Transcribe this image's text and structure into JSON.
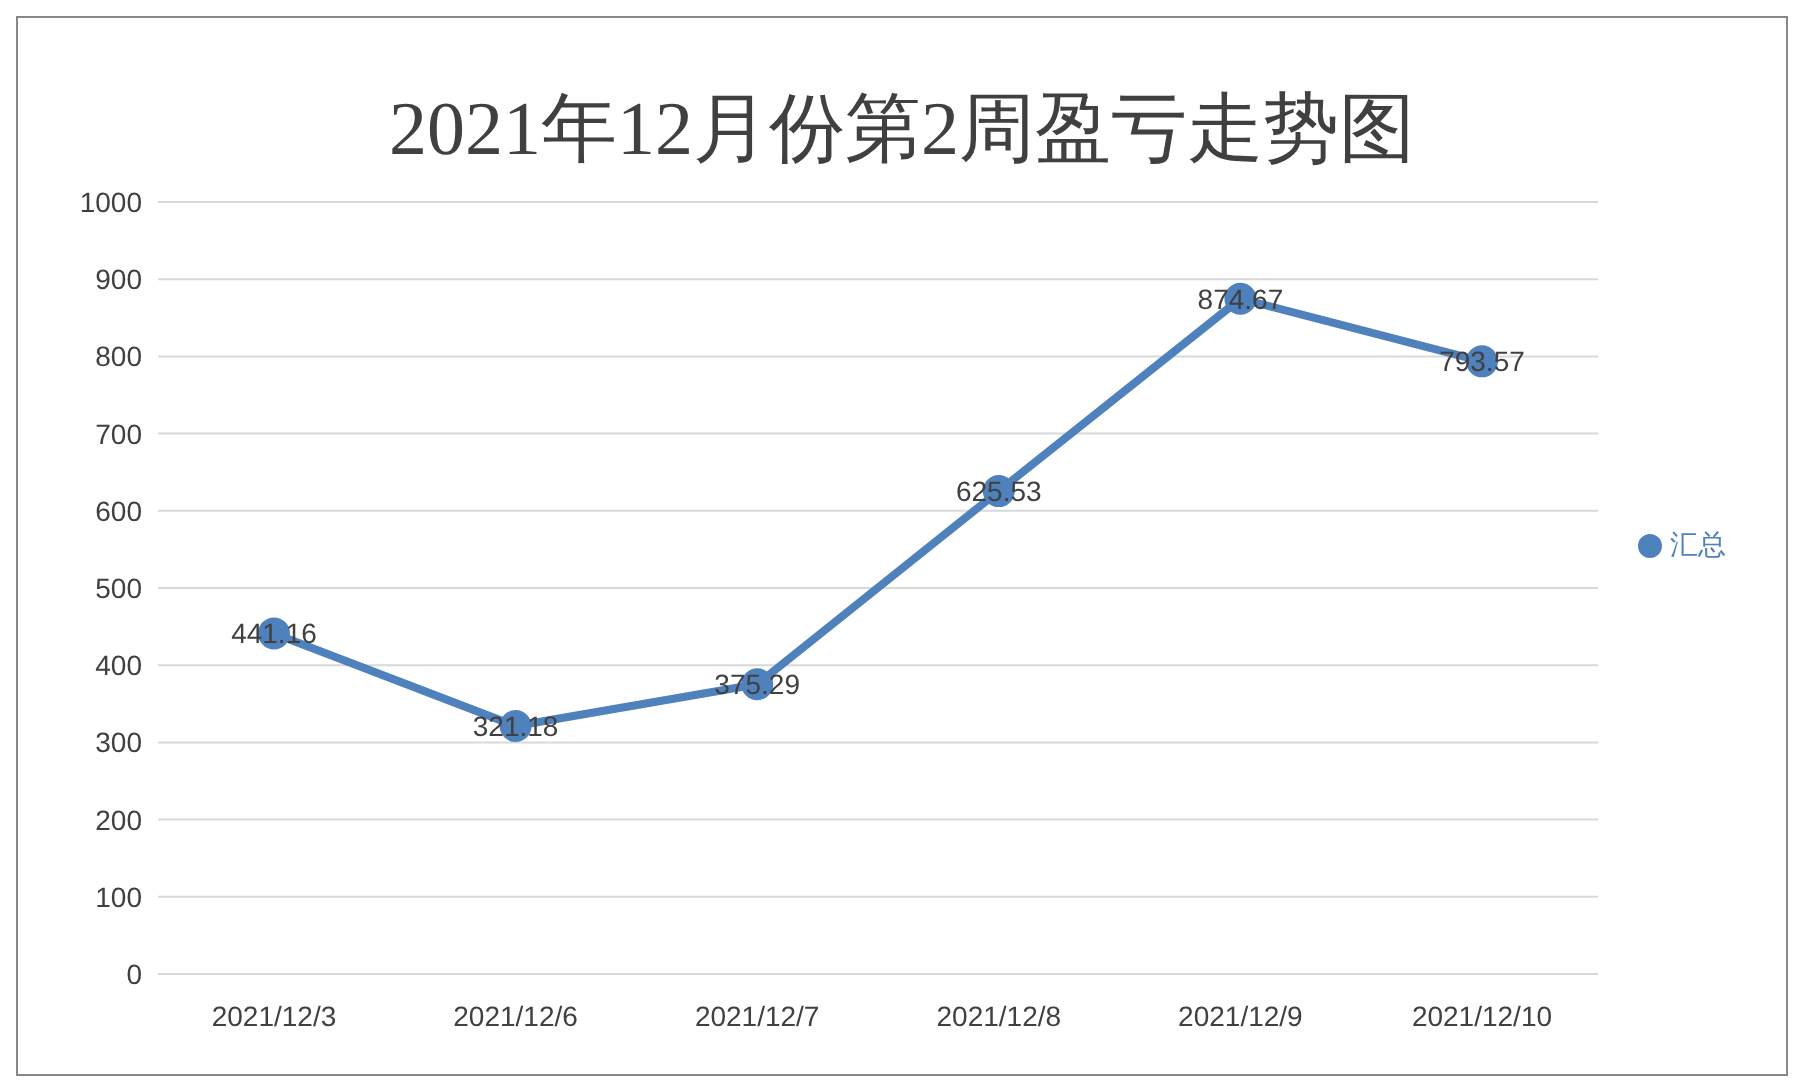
{
  "chart_data": {
    "type": "line",
    "title": "2021年12月份第2周盈亏走势图",
    "categories": [
      "2021/12/3",
      "2021/12/6",
      "2021/12/7",
      "2021/12/8",
      "2021/12/9",
      "2021/12/10"
    ],
    "series": [
      {
        "name": "汇总",
        "color": "#4f81bd",
        "values": [
          441.16,
          321.18,
          375.29,
          625.53,
          874.67,
          793.57
        ]
      }
    ],
    "ylim": [
      0,
      1000
    ],
    "yticks": [
      0,
      100,
      200,
      300,
      400,
      500,
      600,
      700,
      800,
      900,
      1000
    ],
    "grid": "y",
    "legend": "right",
    "marker": "circle",
    "line_style": "solid",
    "data_labels": true
  }
}
